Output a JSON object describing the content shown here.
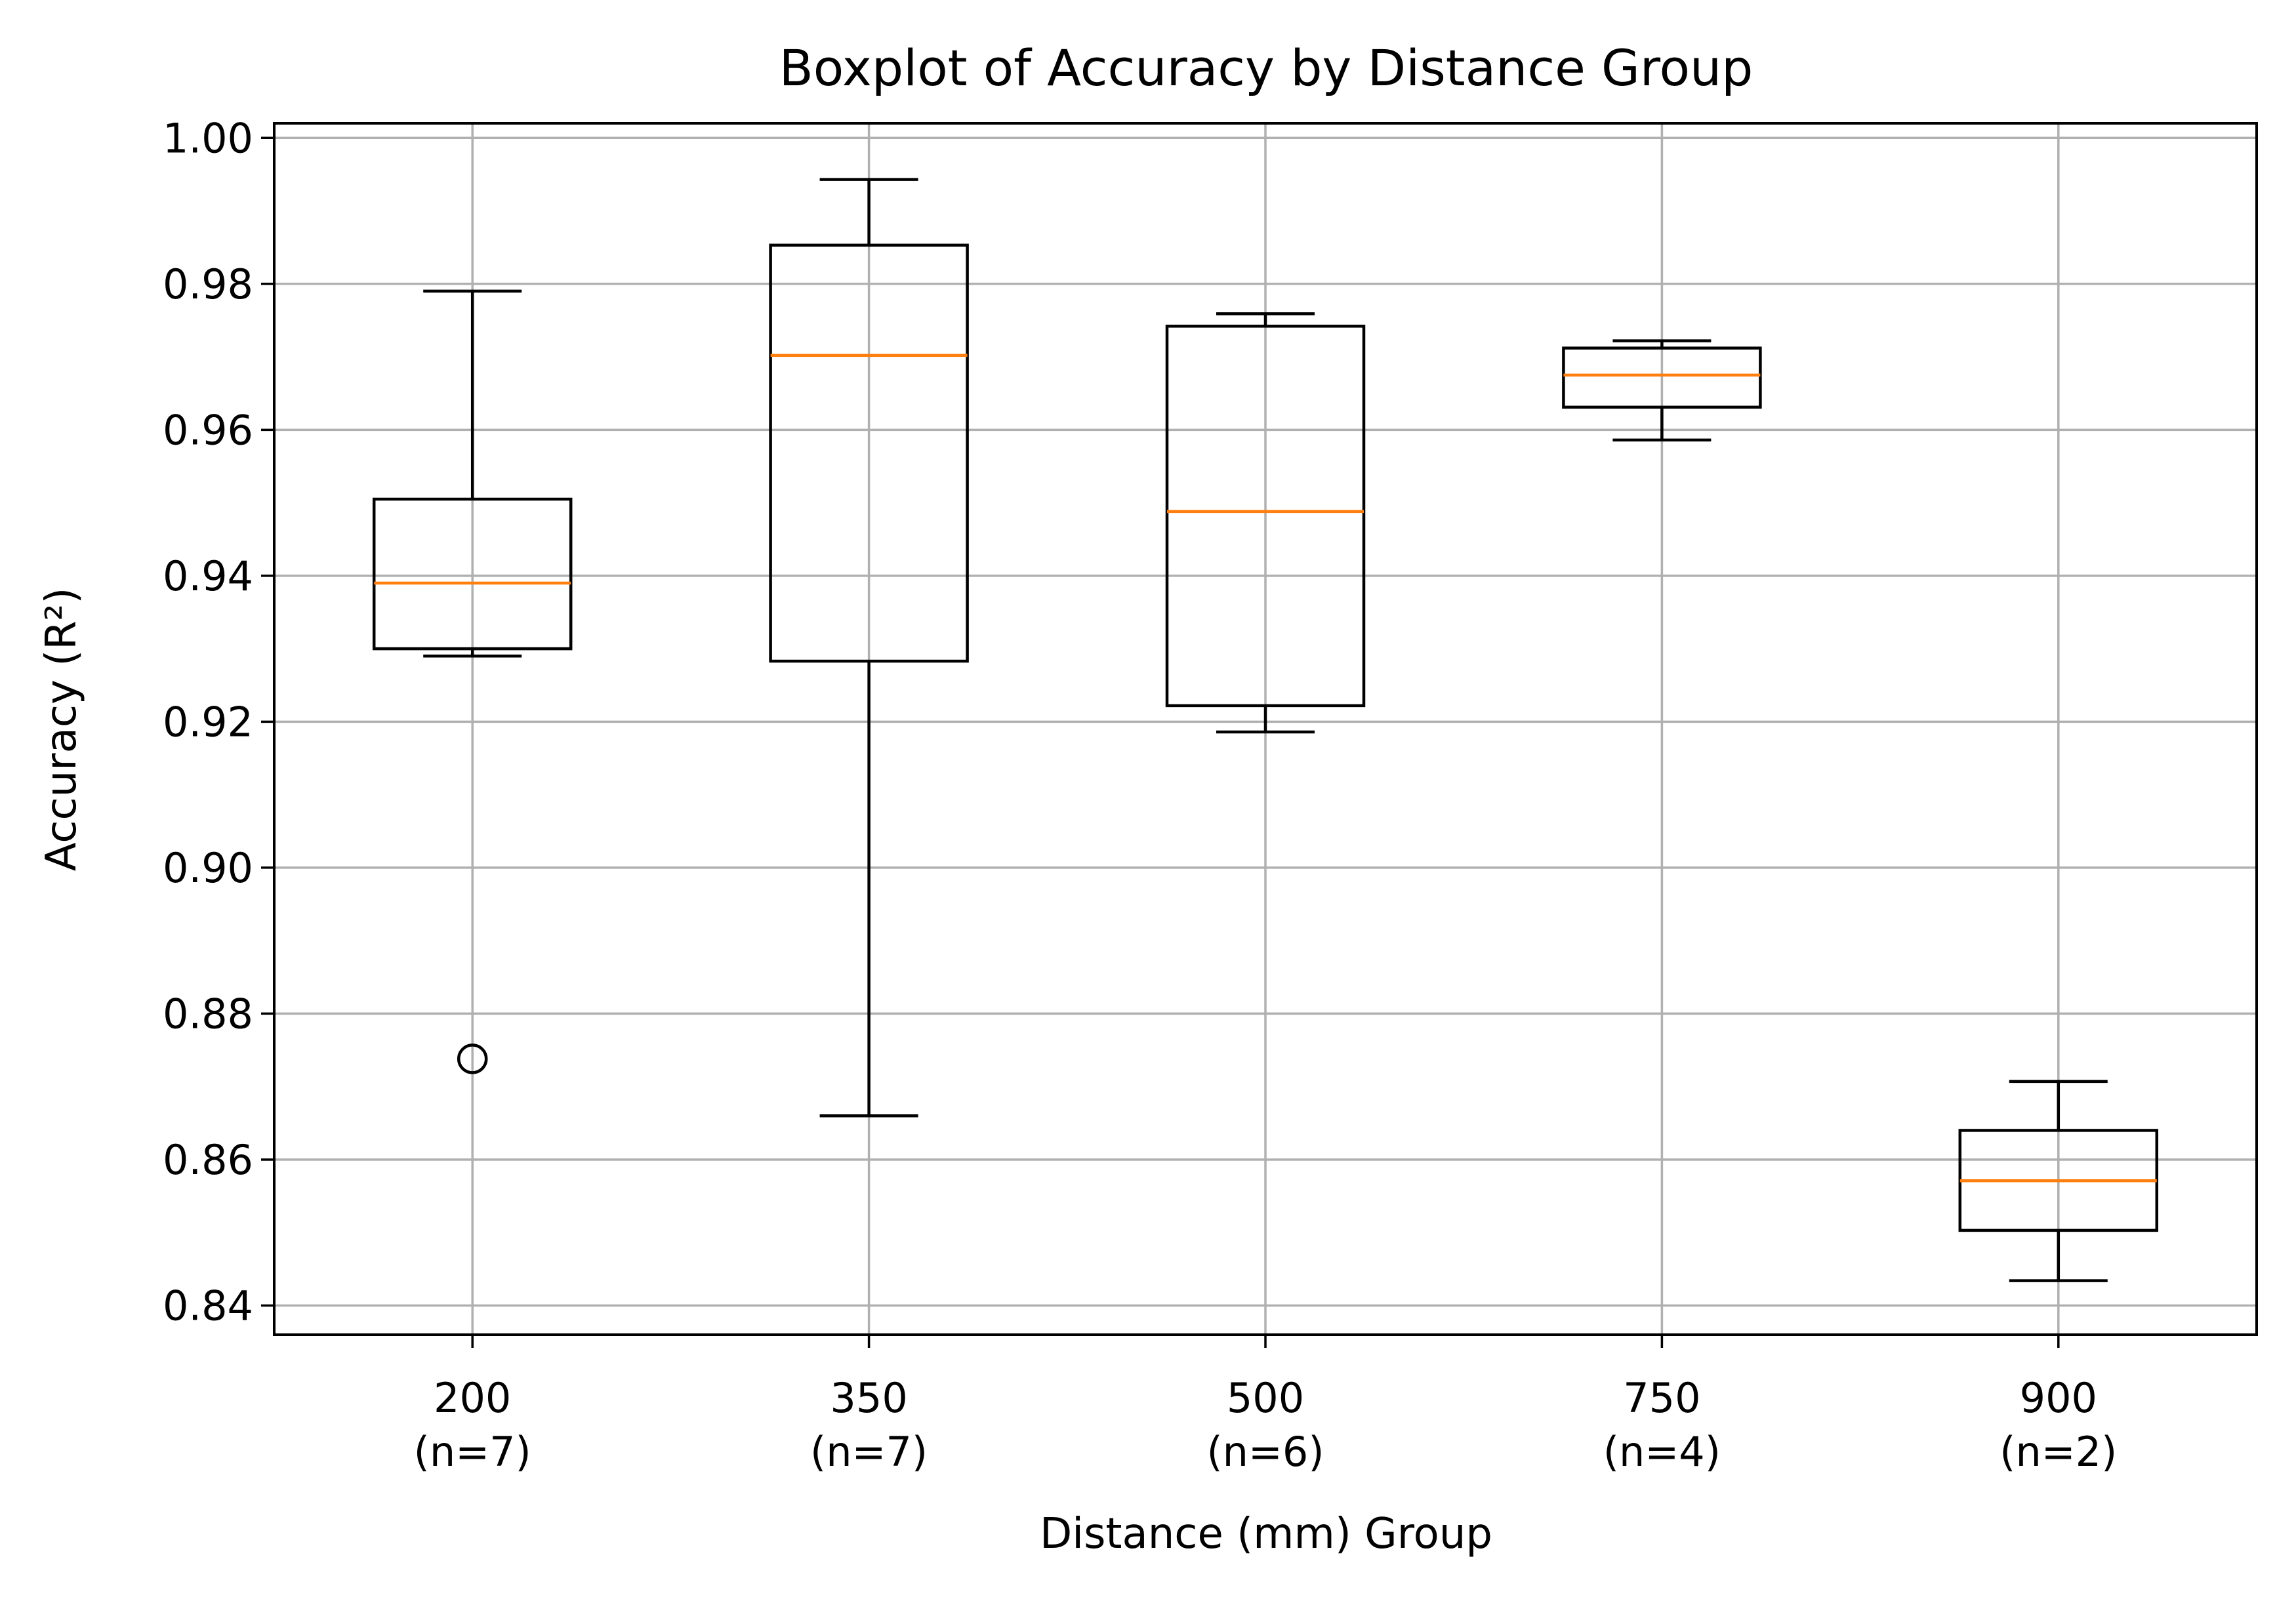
{
  "chart_data": {
    "type": "boxplot",
    "title": "Boxplot of Accuracy by Distance Group",
    "xlabel": "Distance (mm) Group",
    "ylabel": "Accuracy (R²)",
    "ylim": [
      0.836,
      1.002
    ],
    "yticks": [
      0.84,
      0.86,
      0.88,
      0.9,
      0.92,
      0.94,
      0.96,
      0.98,
      1.0
    ],
    "ytick_labels": [
      "0.84",
      "0.86",
      "0.88",
      "0.90",
      "0.92",
      "0.94",
      "0.96",
      "0.98",
      "1.00"
    ],
    "grid": true,
    "categories": [
      {
        "label": "200",
        "count_label": "(n=7)"
      },
      {
        "label": "350",
        "count_label": "(n=7)"
      },
      {
        "label": "500",
        "count_label": "(n=6)"
      },
      {
        "label": "750",
        "count_label": "(n=4)"
      },
      {
        "label": "900",
        "count_label": "(n=2)"
      }
    ],
    "boxes": [
      {
        "whisker_low": 0.929,
        "q1": 0.93,
        "median": 0.939,
        "q3": 0.9505,
        "whisker_high": 0.979,
        "outliers": [
          0.8738
        ]
      },
      {
        "whisker_low": 0.866,
        "q1": 0.9283,
        "median": 0.9702,
        "q3": 0.9853,
        "whisker_high": 0.9943,
        "outliers": []
      },
      {
        "whisker_low": 0.9186,
        "q1": 0.9222,
        "median": 0.9488,
        "q3": 0.9742,
        "whisker_high": 0.9759,
        "outliers": []
      },
      {
        "whisker_low": 0.9586,
        "q1": 0.9631,
        "median": 0.9675,
        "q3": 0.9712,
        "whisker_high": 0.9722,
        "outliers": []
      },
      {
        "whisker_low": 0.8434,
        "q1": 0.8503,
        "median": 0.8571,
        "q3": 0.864,
        "whisker_high": 0.8707,
        "outliers": []
      }
    ],
    "colors": {
      "box": "#000000",
      "median": "#ff7f0e",
      "grid": "#b0b0b0",
      "outlier": "#000000"
    }
  }
}
